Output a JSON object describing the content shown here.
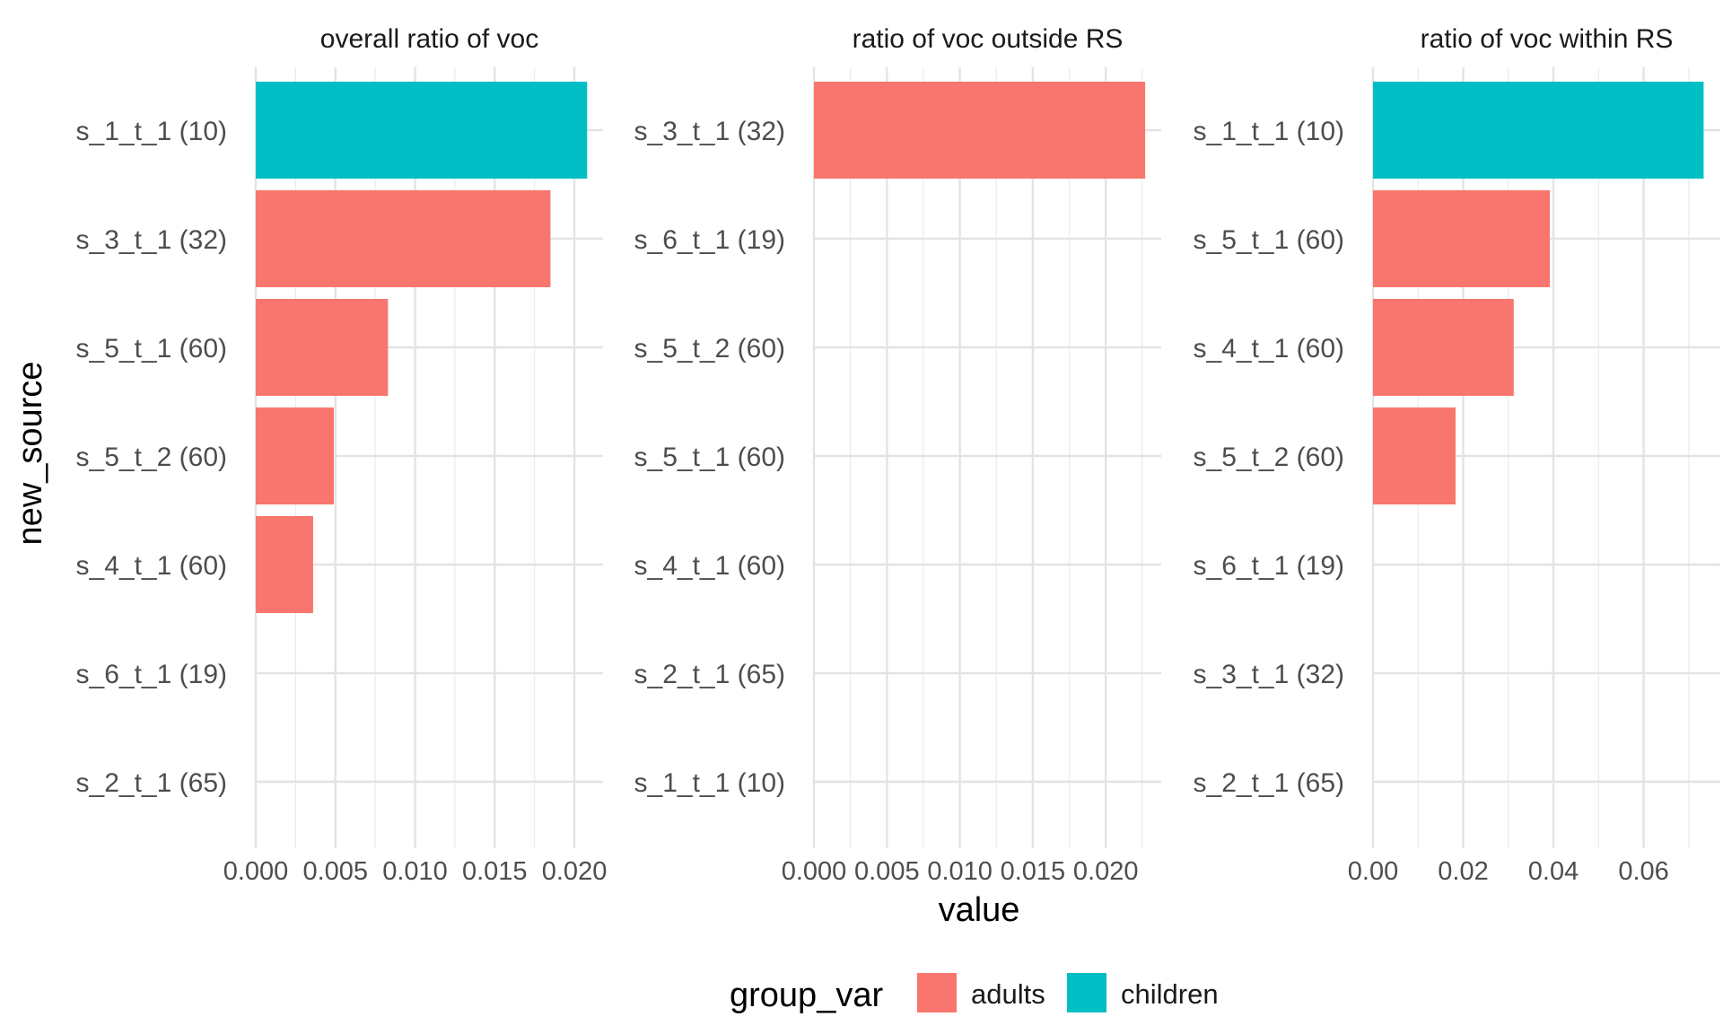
{
  "chart_data": {
    "type": "bar",
    "orientation": "horizontal",
    "ylabel": "new_source",
    "xlabel": "value",
    "grid": true,
    "legend": {
      "title": "group_var",
      "placement": "bottom",
      "items": [
        {
          "label": "adults",
          "color": "#F8766D"
        },
        {
          "label": "children",
          "color": "#00BFC4"
        }
      ]
    },
    "panels": [
      {
        "title": "overall ratio of voc",
        "categories": [
          "s_1_t_1 (10)",
          "s_3_t_1 (32)",
          "s_5_t_1 (60)",
          "s_5_t_2 (60)",
          "s_4_t_1 (60)",
          "s_6_t_1 (19)",
          "s_2_t_1 (65)"
        ],
        "values": [
          0.0208,
          0.0185,
          0.0083,
          0.0049,
          0.0036,
          0,
          0
        ],
        "groups": [
          "children",
          "adults",
          "adults",
          "adults",
          "adults",
          "adults",
          "adults"
        ],
        "xlim": [
          0,
          0.0218
        ],
        "ticks": [
          0,
          0.005,
          0.01,
          0.015,
          0.02
        ],
        "tick_labels": [
          "0.000",
          "0.005",
          "0.010",
          "0.015",
          "0.020"
        ]
      },
      {
        "title": "ratio of voc outside RS",
        "categories": [
          "s_3_t_1 (32)",
          "s_6_t_1 (19)",
          "s_5_t_2 (60)",
          "s_5_t_1 (60)",
          "s_4_t_1 (60)",
          "s_2_t_1 (65)",
          "s_1_t_1 (10)"
        ],
        "values": [
          0.0227,
          0,
          0,
          0,
          0,
          0,
          0
        ],
        "groups": [
          "adults",
          "adults",
          "adults",
          "adults",
          "adults",
          "adults",
          "children"
        ],
        "xlim": [
          0,
          0.0238
        ],
        "ticks": [
          0,
          0.005,
          0.01,
          0.015,
          0.02
        ],
        "tick_labels": [
          "0.000",
          "0.005",
          "0.010",
          "0.015",
          "0.020"
        ]
      },
      {
        "title": "ratio of voc within RS",
        "categories": [
          "s_1_t_1 (10)",
          "s_5_t_1 (60)",
          "s_4_t_1 (60)",
          "s_5_t_2 (60)",
          "s_6_t_1 (19)",
          "s_3_t_1 (32)",
          "s_2_t_1 (65)"
        ],
        "values": [
          0.0733,
          0.0392,
          0.0312,
          0.0183,
          0,
          0,
          0
        ],
        "groups": [
          "children",
          "adults",
          "adults",
          "adults",
          "adults",
          "adults",
          "adults"
        ],
        "xlim": [
          0,
          0.077
        ],
        "ticks": [
          0,
          0.02,
          0.04,
          0.06
        ],
        "tick_labels": [
          "0.00",
          "0.02",
          "0.04",
          "0.06"
        ]
      }
    ]
  }
}
